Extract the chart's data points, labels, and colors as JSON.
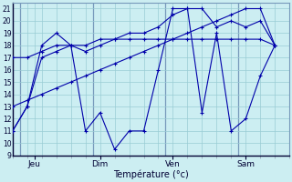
{
  "title": "Température (°c)",
  "bg_color": "#cceef2",
  "grid_color": "#99ccd4",
  "line_color": "#0000aa",
  "xlim": [
    0,
    19
  ],
  "ylim": [
    9,
    21.5
  ],
  "yticks": [
    9,
    10,
    11,
    12,
    13,
    14,
    15,
    16,
    17,
    18,
    19,
    20,
    21
  ],
  "xtick_positions": [
    1.5,
    6,
    11,
    16
  ],
  "xtick_labels": [
    "Jeu",
    "Dim",
    "Ven",
    "Sam"
  ],
  "vlines": [
    0.5,
    5.5,
    10.5,
    15.5
  ],
  "series": [
    {
      "x": [
        0,
        1,
        2,
        3,
        4,
        5,
        6,
        7,
        8,
        9,
        10,
        11,
        12,
        13,
        14,
        15,
        16,
        17,
        18
      ],
      "y": [
        11,
        13,
        18,
        19,
        18,
        11,
        12.5,
        9.5,
        11,
        11,
        16,
        21,
        21,
        12.5,
        19,
        11,
        12,
        15.5,
        18
      ]
    },
    {
      "x": [
        0,
        1,
        2,
        3,
        4,
        5,
        6,
        7,
        8,
        9,
        10,
        11,
        12,
        13,
        14,
        15,
        16,
        17,
        18
      ],
      "y": [
        11,
        13,
        17,
        17.5,
        18,
        17.5,
        18,
        18.5,
        19,
        19,
        19.5,
        20.5,
        21,
        21,
        19.5,
        20,
        19.5,
        20,
        18
      ]
    },
    {
      "x": [
        0,
        1,
        2,
        3,
        4,
        5,
        6,
        7,
        8,
        9,
        10,
        11,
        12,
        13,
        14,
        15,
        16,
        17,
        18
      ],
      "y": [
        17,
        17,
        17.5,
        18,
        18,
        18,
        18.5,
        18.5,
        18.5,
        18.5,
        18.5,
        18.5,
        18.5,
        18.5,
        18.5,
        18.5,
        18.5,
        18.5,
        18
      ]
    },
    {
      "x": [
        0,
        1,
        2,
        3,
        4,
        5,
        6,
        7,
        8,
        9,
        10,
        11,
        12,
        13,
        14,
        15,
        16,
        17,
        18
      ],
      "y": [
        13,
        13.5,
        14,
        14.5,
        15,
        15.5,
        16,
        16.5,
        17,
        17.5,
        18,
        18.5,
        19,
        19.5,
        20,
        20.5,
        21,
        21,
        18
      ]
    }
  ]
}
